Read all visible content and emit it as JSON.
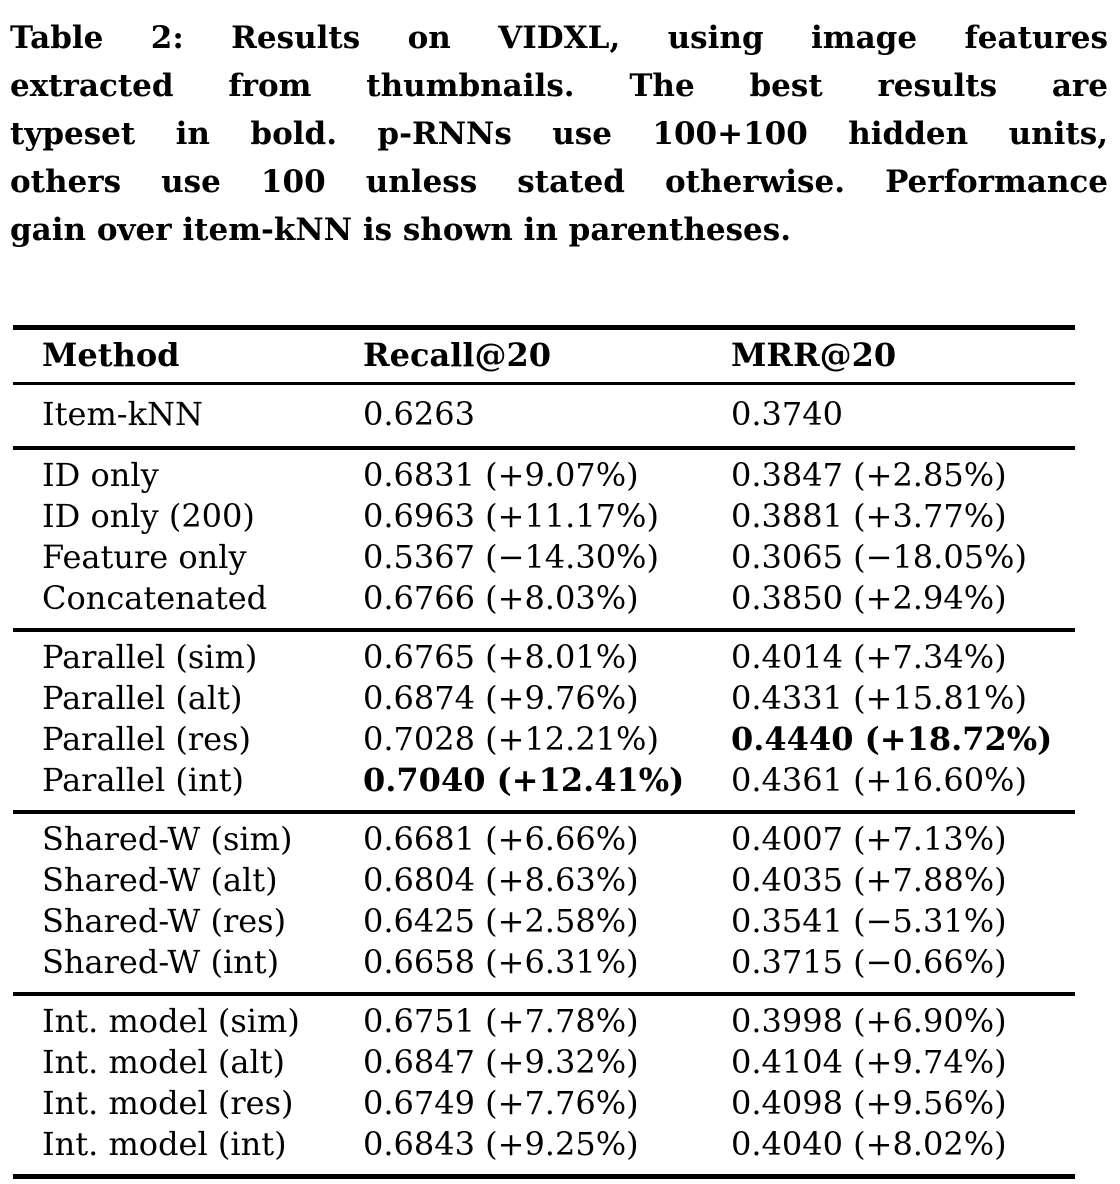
{
  "caption": {
    "label": "Table 2:",
    "lines": [
      "Table 2: Results on VIDXL, using image features",
      "extracted from thumbnails. The best results are",
      "typeset in bold. p-RNNs use 100+100 hidden units,",
      "others use 100 unless stated otherwise. Performance",
      "gain over item-kNN is shown in parentheses."
    ]
  },
  "table": {
    "columns": [
      "Method",
      "Recall@20",
      "MRR@20"
    ],
    "groups": [
      {
        "rows": [
          {
            "method": "Item-kNN",
            "recall": "0.6263",
            "mrr": "0.3740"
          }
        ]
      },
      {
        "rows": [
          {
            "method": "ID only",
            "recall": "0.6831",
            "recall_gain": "(+9.07%)",
            "mrr": "0.3847",
            "mrr_gain": "(+2.85%)"
          },
          {
            "method": "ID only (200)",
            "recall": "0.6963",
            "recall_gain": "(+11.17%)",
            "mrr": "0.3881",
            "mrr_gain": "(+3.77%)"
          },
          {
            "method": "Feature only",
            "recall": "0.5367",
            "recall_gain": "(−14.30%)",
            "mrr": "0.3065",
            "mrr_gain": "(−18.05%)"
          },
          {
            "method": "Concatenated",
            "recall": "0.6766",
            "recall_gain": "(+8.03%)",
            "mrr": "0.3850",
            "mrr_gain": "(+2.94%)"
          }
        ]
      },
      {
        "rows": [
          {
            "method": "Parallel (sim)",
            "recall": "0.6765",
            "recall_gain": "(+8.01%)",
            "mrr": "0.4014",
            "mrr_gain": "(+7.34%)"
          },
          {
            "method": "Parallel (alt)",
            "recall": "0.6874",
            "recall_gain": "(+9.76%)",
            "mrr": "0.4331",
            "mrr_gain": "(+15.81%)"
          },
          {
            "method": "Parallel (res)",
            "recall": "0.7028",
            "recall_gain": "(+12.21%)",
            "mrr": "0.4440",
            "mrr_gain": "(+18.72%)",
            "mrr_bold": true
          },
          {
            "method": "Parallel (int)",
            "recall": "0.7040",
            "recall_gain": "(+12.41%)",
            "recall_bold": true,
            "mrr": "0.4361",
            "mrr_gain": "(+16.60%)"
          }
        ]
      },
      {
        "rows": [
          {
            "method": "Shared-W (sim)",
            "recall": "0.6681",
            "recall_gain": "(+6.66%)",
            "mrr": "0.4007",
            "mrr_gain": "(+7.13%)"
          },
          {
            "method": "Shared-W (alt)",
            "recall": "0.6804",
            "recall_gain": "(+8.63%)",
            "mrr": "0.4035",
            "mrr_gain": "(+7.88%)"
          },
          {
            "method": "Shared-W (res)",
            "recall": "0.6425",
            "recall_gain": "(+2.58%)",
            "mrr": "0.3541",
            "mrr_gain": "(−5.31%)"
          },
          {
            "method": "Shared-W (int)",
            "recall": "0.6658",
            "recall_gain": "(+6.31%)",
            "mrr": "0.3715",
            "mrr_gain": "(−0.66%)"
          }
        ]
      },
      {
        "rows": [
          {
            "method": "Int. model (sim)",
            "recall": "0.6751",
            "recall_gain": "(+7.78%)",
            "mrr": "0.3998",
            "mrr_gain": "(+6.90%)"
          },
          {
            "method": "Int. model (alt)",
            "recall": "0.6847",
            "recall_gain": "(+9.32%)",
            "mrr": "0.4104",
            "mrr_gain": "(+9.74%)"
          },
          {
            "method": "Int. model (res)",
            "recall": "0.6749",
            "recall_gain": "(+7.76%)",
            "mrr": "0.4098",
            "mrr_gain": "(+9.56%)"
          },
          {
            "method": "Int. model (int)",
            "recall": "0.6843",
            "recall_gain": "(+9.25%)",
            "mrr": "0.4040",
            "mrr_gain": "(+8.02%)"
          }
        ]
      }
    ]
  },
  "colors": {
    "text": "#000000",
    "background": "#ffffff",
    "rule": "#000000"
  }
}
